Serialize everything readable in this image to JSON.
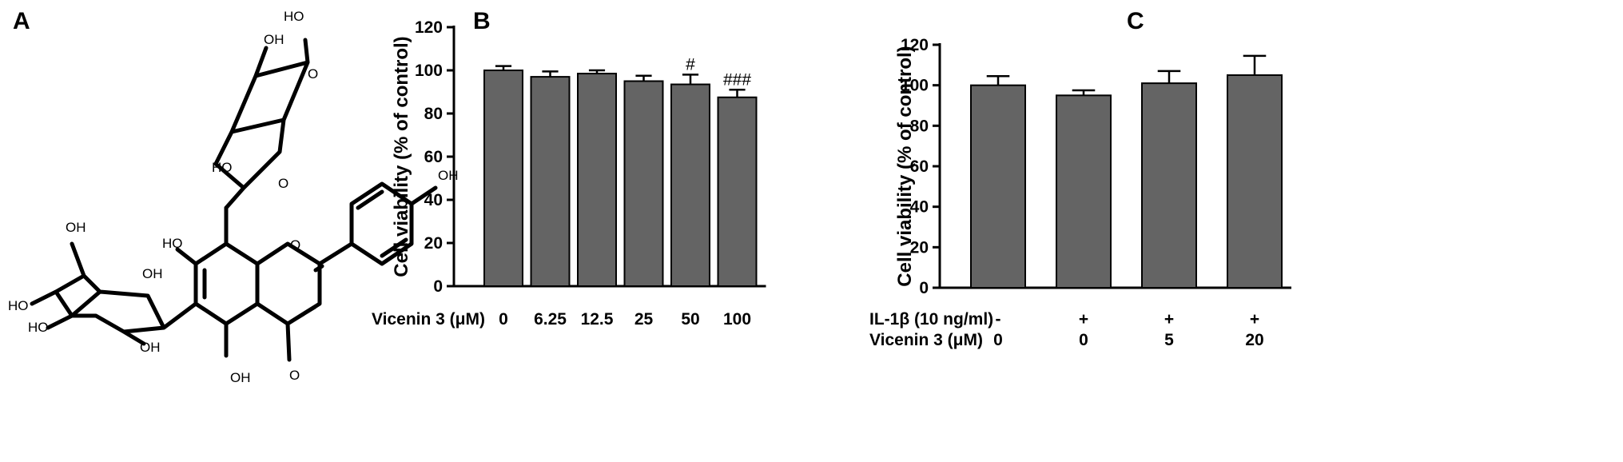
{
  "panels": {
    "a": {
      "letter": "A"
    },
    "b": {
      "letter": "B"
    },
    "c": {
      "letter": "C"
    }
  },
  "molecule": {
    "atom_labels": [
      "HO",
      "OH",
      "HO",
      "O",
      "OH",
      "OH",
      "HO",
      "HO",
      "OH",
      "HO",
      "O",
      "OH",
      "OH",
      "O",
      "O"
    ]
  },
  "chart_data": [
    {
      "type": "bar",
      "panel": "B",
      "title": "",
      "ylabel": "Cell viability (% of control)",
      "xlabel": "",
      "ylim": [
        0,
        120
      ],
      "yticks": [
        0,
        20,
        40,
        60,
        80,
        100,
        120
      ],
      "grid": false,
      "condition_rows": [
        {
          "label": "Vicenin 3 (μM)",
          "values": [
            "0",
            "6.25",
            "12.5",
            "25",
            "50",
            "100"
          ]
        }
      ],
      "categories": [
        "0",
        "6.25",
        "12.5",
        "25",
        "50",
        "100"
      ],
      "values": [
        100,
        97,
        98.5,
        95,
        93.5,
        87.5
      ],
      "errors": [
        2,
        2.5,
        1.5,
        2.5,
        4.5,
        3.5
      ],
      "annotations": [
        "",
        "",
        "",
        "",
        "#",
        "###"
      ]
    },
    {
      "type": "bar",
      "panel": "C",
      "title": "",
      "ylabel": "Cell viability (% of control)",
      "xlabel": "",
      "ylim": [
        0,
        120
      ],
      "yticks": [
        0,
        20,
        40,
        60,
        80,
        100,
        120
      ],
      "grid": false,
      "condition_rows": [
        {
          "label": "IL-1β (10 ng/ml)",
          "values": [
            "-",
            "+",
            "+",
            "+"
          ]
        },
        {
          "label": "Vicenin 3 (μM)",
          "values": [
            "0",
            "0",
            "5",
            "20"
          ]
        }
      ],
      "categories": [
        "0",
        "0",
        "5",
        "20"
      ],
      "values": [
        100,
        95,
        101,
        105
      ],
      "errors": [
        4.5,
        2.5,
        6,
        9.5
      ],
      "annotations": [
        "",
        "",
        "",
        ""
      ]
    }
  ]
}
